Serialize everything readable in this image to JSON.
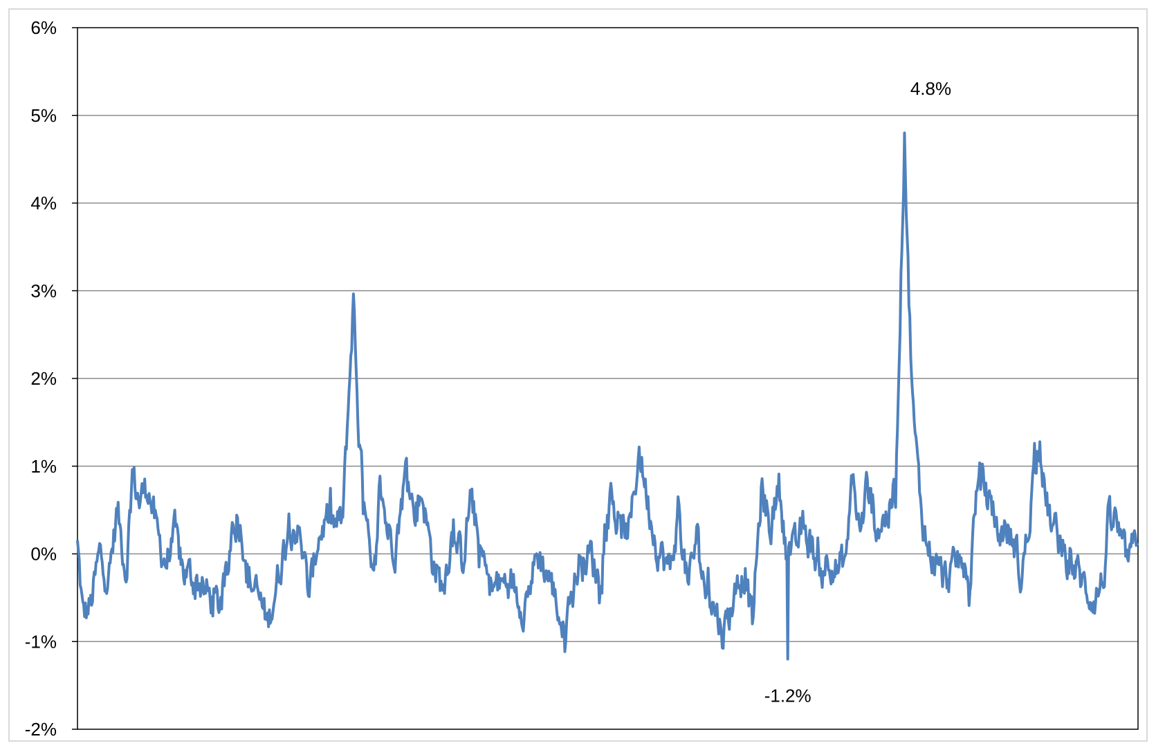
{
  "chart_data": {
    "type": "line",
    "title": "",
    "xlabel": "",
    "ylabel": "",
    "ylim": [
      -2,
      6
    ],
    "yticks": [
      -2,
      -1,
      0,
      1,
      2,
      3,
      4,
      5,
      6
    ],
    "ytick_labels": [
      "-2%",
      "-1%",
      "0%",
      "1%",
      "2%",
      "3%",
      "4%",
      "5%",
      "6%"
    ],
    "grid": true,
    "legend": "none",
    "x_count": 1200,
    "series": [
      {
        "color": "#4f81bd",
        "keypoints": [
          [
            0,
            0.1
          ],
          [
            6,
            -0.7
          ],
          [
            15,
            -0.6
          ],
          [
            25,
            0.0
          ],
          [
            35,
            -0.3
          ],
          [
            45,
            0.5
          ],
          [
            55,
            -0.2
          ],
          [
            62,
            0.9
          ],
          [
            70,
            0.6
          ],
          [
            80,
            0.8
          ],
          [
            90,
            0.2
          ],
          [
            100,
            -0.1
          ],
          [
            110,
            0.2
          ],
          [
            120,
            -0.2
          ],
          [
            135,
            -0.3
          ],
          [
            150,
            -0.5
          ],
          [
            160,
            -0.6
          ],
          [
            170,
            -0.2
          ],
          [
            175,
            0.4
          ],
          [
            185,
            0.3
          ],
          [
            195,
            -0.3
          ],
          [
            205,
            -0.5
          ],
          [
            215,
            -0.8
          ],
          [
            228,
            -0.2
          ],
          [
            240,
            0.4
          ],
          [
            252,
            0.2
          ],
          [
            262,
            -0.5
          ],
          [
            272,
            0.2
          ],
          [
            282,
            0.4
          ],
          [
            292,
            0.3
          ],
          [
            300,
            0.4
          ],
          [
            312,
            2.9
          ],
          [
            318,
            1.4
          ],
          [
            325,
            0.4
          ],
          [
            335,
            -0.4
          ],
          [
            342,
            0.8
          ],
          [
            350,
            0.3
          ],
          [
            360,
            0.1
          ],
          [
            372,
            1.0
          ],
          [
            380,
            0.5
          ],
          [
            390,
            0.7
          ],
          [
            400,
            0.0
          ],
          [
            412,
            -0.4
          ],
          [
            425,
            0.3
          ],
          [
            435,
            -0.1
          ],
          [
            445,
            0.7
          ],
          [
            455,
            0.0
          ],
          [
            470,
            -0.4
          ],
          [
            490,
            -0.3
          ],
          [
            505,
            -0.6
          ],
          [
            520,
            0.0
          ],
          [
            535,
            -0.3
          ],
          [
            550,
            -0.9
          ],
          [
            565,
            -0.2
          ],
          [
            580,
            0.0
          ],
          [
            590,
            -0.3
          ],
          [
            603,
            0.8
          ],
          [
            612,
            0.2
          ],
          [
            625,
            0.3
          ],
          [
            635,
            1.2
          ],
          [
            645,
            0.6
          ],
          [
            655,
            0.1
          ],
          [
            670,
            -0.2
          ],
          [
            680,
            0.5
          ],
          [
            690,
            -0.4
          ],
          [
            700,
            0.2
          ],
          [
            710,
            -0.4
          ],
          [
            720,
            -0.6
          ],
          [
            730,
            -0.9
          ],
          [
            745,
            -0.4
          ],
          [
            755,
            -0.2
          ],
          [
            763,
            -0.8
          ],
          [
            773,
            0.7
          ],
          [
            785,
            0.3
          ],
          [
            793,
            0.8
          ],
          [
            800,
            0.2
          ],
          [
            810,
            0.0
          ],
          [
            820,
            0.3
          ],
          [
            830,
            0.1
          ],
          [
            840,
            -0.2
          ],
          [
            850,
            0.0
          ],
          [
            860,
            -0.2
          ],
          [
            870,
            0.0
          ],
          [
            875,
            0.9
          ],
          [
            885,
            0.2
          ],
          [
            893,
            0.8
          ],
          [
            903,
            0.3
          ],
          [
            913,
            0.4
          ],
          [
            918,
            0.5
          ],
          [
            925,
            0.7
          ],
          [
            935,
            4.8
          ],
          [
            940,
            2.9
          ],
          [
            945,
            1.6
          ],
          [
            952,
            0.7
          ],
          [
            960,
            0.1
          ],
          [
            970,
            -0.1
          ],
          [
            980,
            -0.3
          ],
          [
            990,
            -0.2
          ],
          [
            1000,
            0.0
          ],
          [
            1008,
            -0.5
          ],
          [
            1015,
            0.6
          ],
          [
            1022,
            0.9
          ],
          [
            1030,
            0.6
          ],
          [
            1040,
            0.2
          ],
          [
            1050,
            0.3
          ],
          [
            1060,
            0.1
          ],
          [
            1067,
            -0.3
          ],
          [
            1075,
            0.3
          ],
          [
            1080,
            0.8
          ],
          [
            1088,
            1.2
          ],
          [
            1095,
            0.6
          ],
          [
            1102,
            0.3
          ],
          [
            1112,
            0.1
          ],
          [
            1120,
            -0.1
          ],
          [
            1130,
            -0.2
          ],
          [
            1140,
            -0.4
          ],
          [
            1150,
            -0.5
          ],
          [
            1160,
            -0.3
          ],
          [
            1165,
            0.3
          ],
          [
            1172,
            0.4
          ],
          [
            1178,
            0.2
          ],
          [
            1183,
            0.0
          ],
          [
            1190,
            -0.1
          ],
          [
            1199,
            0.3
          ]
        ],
        "noise_amplitude": 0.38
      }
    ],
    "annotations": [
      {
        "text": "4.8%",
        "x": 935,
        "y": 4.8,
        "position": "above"
      },
      {
        "text": "-1.2%",
        "x": 803,
        "y": -1.2,
        "position": "below"
      }
    ]
  }
}
